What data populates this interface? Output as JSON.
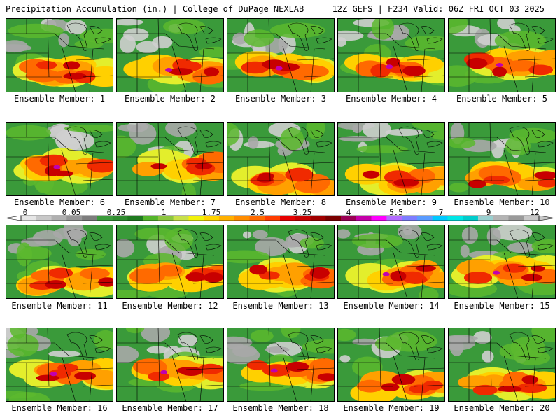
{
  "header": {
    "left": "Precipitation Accumulation (in.) | College of DuPage NEXLAB",
    "right": "12Z GEFS | F234 Valid: 06Z FRI OCT 03 2025"
  },
  "colorbar": {
    "ticks": [
      "0",
      "0.05",
      "0.25",
      "1",
      "1.75",
      "2.5",
      "3.25",
      "4",
      "5.5",
      "7",
      "9",
      "12"
    ],
    "colors": [
      "#e6e6e6",
      "#c8c8c8",
      "#b0b0b0",
      "#969696",
      "#7d7d7d",
      "#3a9a3a",
      "#2e8b2e",
      "#1f7a1f",
      "#54b52b",
      "#8cc63f",
      "#c8e04a",
      "#f2f20a",
      "#ffd400",
      "#ffb000",
      "#ff8c00",
      "#ff6a00",
      "#ff3c00",
      "#e60000",
      "#c80000",
      "#a00000",
      "#7a0000",
      "#9b0055",
      "#c400a8",
      "#ff00ff",
      "#b36bff",
      "#7d7dff",
      "#5a9bff",
      "#00c8ff",
      "#00e6e6",
      "#00cccc",
      "#9ad0d0",
      "#b4b4b4",
      "#9a9a9a",
      "#c8c8c8"
    ]
  },
  "members": [
    {
      "label": "Ensemble Member: 1"
    },
    {
      "label": "Ensemble Member: 2"
    },
    {
      "label": "Ensemble Member: 3"
    },
    {
      "label": "Ensemble Member: 4"
    },
    {
      "label": "Ensemble Member: 5"
    },
    {
      "label": "Ensemble Member: 6"
    },
    {
      "label": "Ensemble Member: 7"
    },
    {
      "label": "Ensemble Member: 8"
    },
    {
      "label": "Ensemble Member: 9"
    },
    {
      "label": "Ensemble Member: 10"
    },
    {
      "label": "Ensemble Member: 11"
    },
    {
      "label": "Ensemble Member: 12"
    },
    {
      "label": "Ensemble Member: 13"
    },
    {
      "label": "Ensemble Member: 14"
    },
    {
      "label": "Ensemble Member: 15"
    },
    {
      "label": "Ensemble Member: 16"
    },
    {
      "label": "Ensemble Member: 17"
    },
    {
      "label": "Ensemble Member: 18"
    },
    {
      "label": "Ensemble Member: 19"
    },
    {
      "label": "Ensemble Member: 20"
    }
  ]
}
